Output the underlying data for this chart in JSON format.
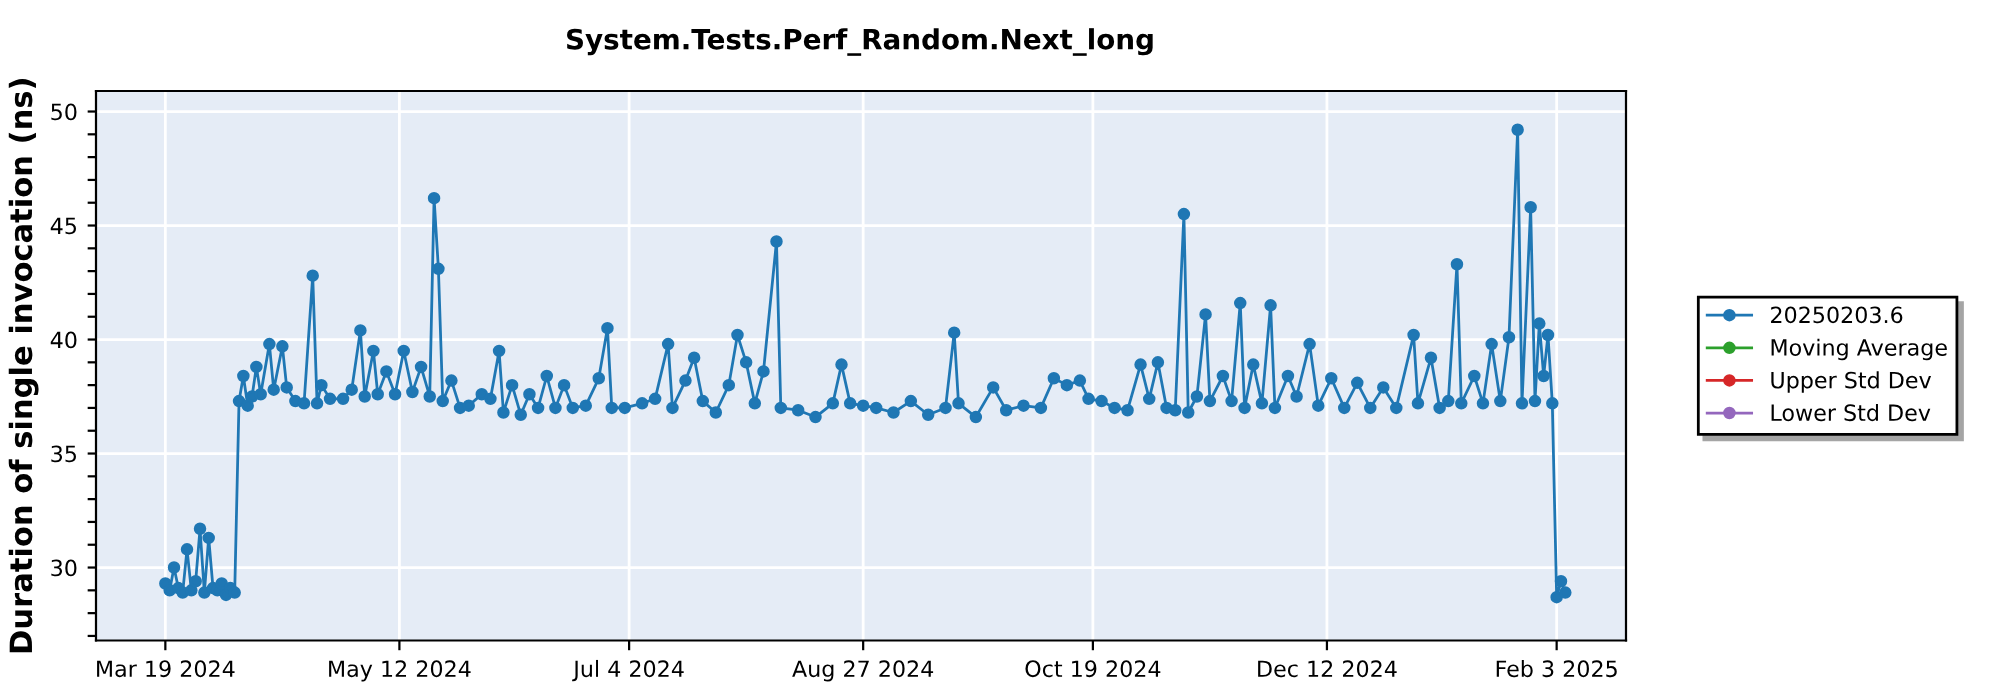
{
  "chart_data": {
    "type": "line",
    "title": "System.Tests.Perf_Random.Next_long",
    "ylabel": "Duration of single invocation (ns)",
    "x": [
      "2024-03-19",
      "2024-03-20",
      "2024-03-21",
      "2024-03-22",
      "2024-03-23",
      "2024-03-24",
      "2024-03-25",
      "2024-03-26",
      "2024-03-27",
      "2024-03-28",
      "2024-03-29",
      "2024-03-30",
      "2024-03-31",
      "2024-04-01",
      "2024-04-02",
      "2024-04-03",
      "2024-04-04",
      "2024-04-05",
      "2024-04-06",
      "2024-04-07",
      "2024-04-08",
      "2024-04-09",
      "2024-04-10",
      "2024-04-12",
      "2024-04-13",
      "2024-04-15",
      "2024-04-16",
      "2024-04-18",
      "2024-04-20",
      "2024-04-22",
      "2024-04-23",
      "2024-04-24",
      "2024-04-26",
      "2024-04-29",
      "2024-05-01",
      "2024-05-03",
      "2024-05-04",
      "2024-05-06",
      "2024-05-07",
      "2024-05-09",
      "2024-05-11",
      "2024-05-13",
      "2024-05-15",
      "2024-05-17",
      "2024-05-19",
      "2024-05-20",
      "2024-05-21",
      "2024-05-22",
      "2024-05-24",
      "2024-05-26",
      "2024-05-28",
      "2024-05-31",
      "2024-06-02",
      "2024-06-04",
      "2024-06-05",
      "2024-06-07",
      "2024-06-09",
      "2024-06-11",
      "2024-06-13",
      "2024-06-15",
      "2024-06-17",
      "2024-06-19",
      "2024-06-21",
      "2024-06-24",
      "2024-06-27",
      "2024-06-29",
      "2024-06-30",
      "2024-07-03",
      "2024-07-07",
      "2024-07-10",
      "2024-07-13",
      "2024-07-14",
      "2024-07-17",
      "2024-07-19",
      "2024-07-21",
      "2024-07-24",
      "2024-07-27",
      "2024-07-29",
      "2024-07-31",
      "2024-08-02",
      "2024-08-04",
      "2024-08-07",
      "2024-08-08",
      "2024-08-12",
      "2024-08-16",
      "2024-08-20",
      "2024-08-22",
      "2024-08-24",
      "2024-08-27",
      "2024-08-30",
      "2024-09-03",
      "2024-09-07",
      "2024-09-11",
      "2024-09-15",
      "2024-09-17",
      "2024-09-18",
      "2024-09-22",
      "2024-09-26",
      "2024-09-29",
      "2024-10-03",
      "2024-10-07",
      "2024-10-10",
      "2024-10-13",
      "2024-10-16",
      "2024-10-18",
      "2024-10-21",
      "2024-10-24",
      "2024-10-27",
      "2024-10-30",
      "2024-11-01",
      "2024-11-03",
      "2024-11-05",
      "2024-11-07",
      "2024-11-09",
      "2024-11-10",
      "2024-11-12",
      "2024-11-14",
      "2024-11-15",
      "2024-11-18",
      "2024-11-20",
      "2024-11-22",
      "2024-11-23",
      "2024-11-25",
      "2024-11-27",
      "2024-11-29",
      "2024-11-30",
      "2024-12-03",
      "2024-12-05",
      "2024-12-08",
      "2024-12-10",
      "2024-12-13",
      "2024-12-16",
      "2024-12-19",
      "2024-12-22",
      "2024-12-25",
      "2024-12-28",
      "2025-01-01",
      "2025-01-02",
      "2025-01-05",
      "2025-01-07",
      "2025-01-09",
      "2025-01-11",
      "2025-01-12",
      "2025-01-15",
      "2025-01-17",
      "2025-01-19",
      "2025-01-21",
      "2025-01-23",
      "2025-01-25",
      "2025-01-26",
      "2025-01-28",
      "2025-01-29",
      "2025-01-30",
      "2025-01-31",
      "2025-02-01",
      "2025-02-02",
      "2025-02-03",
      "2025-02-04",
      "2025-02-05"
    ],
    "series": [
      {
        "name": "20250203.6",
        "color": "#1f77b4",
        "values": [
          29.3,
          29.0,
          30.0,
          29.1,
          28.9,
          30.8,
          29.0,
          29.4,
          31.7,
          28.9,
          31.3,
          29.1,
          29.0,
          29.3,
          28.8,
          29.1,
          28.9,
          37.3,
          38.4,
          37.1,
          37.5,
          38.8,
          37.6,
          39.8,
          37.8,
          39.7,
          37.9,
          37.3,
          37.2,
          42.8,
          37.2,
          38.0,
          37.4,
          37.4,
          37.8,
          40.4,
          37.5,
          39.5,
          37.6,
          38.6,
          37.6,
          39.5,
          37.7,
          38.8,
          37.5,
          46.2,
          43.1,
          37.3,
          38.2,
          37.0,
          37.1,
          37.6,
          37.4,
          39.5,
          36.8,
          38.0,
          36.7,
          37.6,
          37.0,
          38.4,
          37.0,
          38.0,
          37.0,
          37.1,
          38.3,
          40.5,
          37.0,
          37.0,
          37.2,
          37.4,
          39.8,
          37.0,
          38.2,
          39.2,
          37.3,
          36.8,
          38.0,
          40.2,
          39.0,
          37.2,
          38.6,
          44.3,
          37.0,
          36.9,
          36.6,
          37.2,
          38.9,
          37.2,
          37.1,
          37.0,
          36.8,
          37.3,
          36.7,
          37.0,
          40.3,
          37.2,
          36.6,
          37.9,
          36.9,
          37.1,
          37.0,
          38.3,
          38.0,
          38.2,
          37.4,
          37.3,
          37.0,
          36.9,
          38.9,
          37.4,
          39.0,
          37.0,
          36.9,
          45.5,
          36.8,
          37.5,
          41.1,
          37.3,
          38.4,
          37.3,
          41.6,
          37.0,
          38.9,
          37.2,
          41.5,
          37.0,
          38.4,
          37.5,
          39.8,
          37.1,
          38.3,
          37.0,
          38.1,
          37.0,
          37.9,
          37.0,
          40.2,
          37.2,
          39.2,
          37.0,
          37.3,
          43.3,
          37.2,
          38.4,
          37.2,
          39.8,
          37.3,
          40.1,
          49.2,
          37.2,
          45.8,
          37.3,
          40.7,
          38.4,
          40.2,
          37.2,
          28.7,
          29.4,
          28.9
        ]
      },
      {
        "name": "Moving Average",
        "color": "#2ca02c",
        "values": [
          null,
          null,
          null,
          null,
          null,
          null,
          null,
          null,
          null,
          null,
          null,
          null,
          null,
          null,
          null,
          null,
          null,
          null,
          null,
          null,
          null,
          null,
          null,
          null,
          null,
          null,
          null,
          null,
          null,
          null,
          null,
          null,
          null,
          null,
          null,
          null,
          null,
          null,
          null,
          null,
          null,
          null,
          null,
          null,
          null,
          null,
          null,
          null,
          null,
          null,
          null,
          null,
          null,
          null,
          null,
          null,
          null,
          null,
          null,
          null,
          null,
          null,
          null,
          null,
          null,
          null,
          null,
          null,
          null,
          null,
          null,
          null,
          null,
          null,
          null,
          null,
          null,
          null,
          null,
          null,
          null,
          null,
          null,
          null,
          null,
          null,
          null,
          null,
          null,
          null,
          null,
          null,
          null,
          null,
          null,
          null,
          null,
          null,
          null,
          null,
          null,
          null,
          null,
          null,
          null,
          null,
          null,
          null,
          null,
          null,
          null,
          null,
          null,
          null,
          null,
          null,
          null,
          null,
          null,
          null,
          null,
          null,
          null,
          null,
          null,
          null,
          null,
          null,
          null,
          null,
          null,
          null,
          null,
          null,
          null,
          null,
          null,
          null,
          null,
          null,
          null,
          null,
          null,
          null,
          null,
          null,
          null,
          null,
          null,
          null,
          null,
          null,
          null,
          null,
          null,
          null,
          null,
          null,
          null
        ]
      },
      {
        "name": "Upper Std Dev",
        "color": "#d62728",
        "values": [
          null,
          null,
          null,
          null,
          null,
          null,
          null,
          null,
          null,
          null,
          null,
          null,
          null,
          null,
          null,
          null,
          null,
          null,
          null,
          null,
          null,
          null,
          null,
          null,
          null,
          null,
          null,
          null,
          null,
          null,
          null,
          null,
          null,
          null,
          null,
          null,
          null,
          null,
          null,
          null,
          null,
          null,
          null,
          null,
          null,
          null,
          null,
          null,
          null,
          null,
          null,
          null,
          null,
          null,
          null,
          null,
          null,
          null,
          null,
          null,
          null,
          null,
          null,
          null,
          null,
          null,
          null,
          null,
          null,
          null,
          null,
          null,
          null,
          null,
          null,
          null,
          null,
          null,
          null,
          null,
          null,
          null,
          null,
          null,
          null,
          null,
          null,
          null,
          null,
          null,
          null,
          null,
          null,
          null,
          null,
          null,
          null,
          null,
          null,
          null,
          null,
          null,
          null,
          null,
          null,
          null,
          null,
          null,
          null,
          null,
          null,
          null,
          null,
          null,
          null,
          null,
          null,
          null,
          null,
          null,
          null,
          null,
          null,
          null,
          null,
          null,
          null,
          null,
          null,
          null,
          null,
          null,
          null,
          null,
          null,
          null,
          null,
          null,
          null,
          null,
          null,
          null,
          null,
          null,
          null,
          null,
          null,
          null,
          null,
          null,
          null,
          null,
          null,
          null,
          null,
          null,
          null,
          null,
          null
        ]
      },
      {
        "name": "Lower Std Dev",
        "color": "#9467bd",
        "values": [
          null,
          null,
          null,
          null,
          null,
          null,
          null,
          null,
          null,
          null,
          null,
          null,
          null,
          null,
          null,
          null,
          null,
          null,
          null,
          null,
          null,
          null,
          null,
          null,
          null,
          null,
          null,
          null,
          null,
          null,
          null,
          null,
          null,
          null,
          null,
          null,
          null,
          null,
          null,
          null,
          null,
          null,
          null,
          null,
          null,
          null,
          null,
          null,
          null,
          null,
          null,
          null,
          null,
          null,
          null,
          null,
          null,
          null,
          null,
          null,
          null,
          null,
          null,
          null,
          null,
          null,
          null,
          null,
          null,
          null,
          null,
          null,
          null,
          null,
          null,
          null,
          null,
          null,
          null,
          null,
          null,
          null,
          null,
          null,
          null,
          null,
          null,
          null,
          null,
          null,
          null,
          null,
          null,
          null,
          null,
          null,
          null,
          null,
          null,
          null,
          null,
          null,
          null,
          null,
          null,
          null,
          null,
          null,
          null,
          null,
          null,
          null,
          null,
          null,
          null,
          null,
          null,
          null,
          null,
          null,
          null,
          null,
          null,
          null,
          null,
          null,
          null,
          null,
          null,
          null,
          null,
          null,
          null,
          null,
          null,
          null,
          null,
          null,
          null,
          null,
          null,
          null,
          null,
          null,
          null,
          null,
          null,
          null,
          null,
          null,
          null,
          null,
          null,
          null,
          null,
          null,
          null,
          null,
          null
        ]
      }
    ],
    "xlim": [
      "2024-03-03",
      "2025-02-19"
    ],
    "xticks": [
      {
        "value": "2024-03-19",
        "label": "Mar 19 2024"
      },
      {
        "value": "2024-05-12",
        "label": "May 12 2024"
      },
      {
        "value": "2024-07-04",
        "label": "Jul 4 2024"
      },
      {
        "value": "2024-08-27",
        "label": "Aug 27 2024"
      },
      {
        "value": "2024-10-19",
        "label": "Oct 19 2024"
      },
      {
        "value": "2024-12-12",
        "label": "Dec 12 2024"
      },
      {
        "value": "2025-02-03",
        "label": "Feb 3 2025"
      }
    ],
    "ylim": [
      26.8,
      50.9
    ],
    "yticks": [
      {
        "value": 27,
        "label": null
      },
      {
        "value": 28,
        "label": null
      },
      {
        "value": 29,
        "label": null
      },
      30,
      {
        "value": 31,
        "label": null
      },
      {
        "value": 32,
        "label": null
      },
      {
        "value": 33,
        "label": null
      },
      {
        "value": 34,
        "label": null
      },
      35,
      {
        "value": 36,
        "label": null
      },
      {
        "value": 37,
        "label": null
      },
      {
        "value": 38,
        "label": null
      },
      {
        "value": 39,
        "label": null
      },
      40,
      {
        "value": 41,
        "label": null
      },
      {
        "value": 42,
        "label": null
      },
      {
        "value": 43,
        "label": null
      },
      {
        "value": 44,
        "label": null
      },
      45,
      {
        "value": 46,
        "label": null
      },
      {
        "value": 47,
        "label": null
      },
      {
        "value": 48,
        "label": null
      },
      {
        "value": 49,
        "label": null
      },
      50
    ],
    "grid": true,
    "legend": "right",
    "marker": "circle",
    "line_style": "solid"
  }
}
